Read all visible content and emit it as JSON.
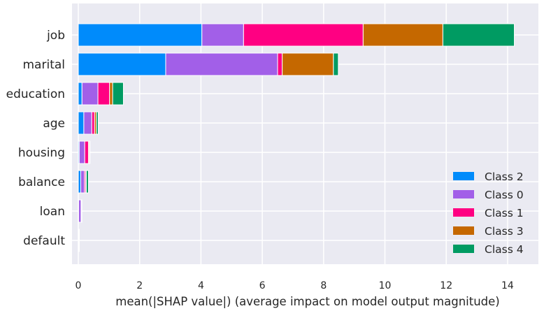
{
  "chart_data": {
    "type": "bar",
    "orientation": "horizontal",
    "stacked": true,
    "categories": [
      "job",
      "marital",
      "education",
      "age",
      "housing",
      "balance",
      "loan",
      "default"
    ],
    "series": [
      {
        "name": "Class 2",
        "color": "#008bfb",
        "values": [
          4.03,
          2.85,
          0.12,
          0.18,
          0.03,
          0.08,
          0.01,
          0.005
        ]
      },
      {
        "name": "Class 0",
        "color": "#a25fe8",
        "values": [
          1.36,
          3.65,
          0.52,
          0.26,
          0.18,
          0.12,
          0.08,
          0.005
        ]
      },
      {
        "name": "Class 1",
        "color": "#ff0082",
        "values": [
          3.9,
          0.15,
          0.38,
          0.09,
          0.12,
          0.04,
          0.01,
          0.005
        ]
      },
      {
        "name": "Class 3",
        "color": "#c56800",
        "values": [
          2.6,
          1.67,
          0.1,
          0.06,
          0.03,
          0.02,
          0.005,
          0.005
        ]
      },
      {
        "name": "Class 4",
        "color": "#009b62",
        "values": [
          2.33,
          0.16,
          0.35,
          0.06,
          0.02,
          0.07,
          0.005,
          0.005
        ]
      }
    ],
    "xlabel": "mean(|SHAP value|) (average impact on model output magnitude)",
    "ylabel": "",
    "xlim": [
      0,
      15
    ],
    "xticks": [
      0,
      2,
      4,
      6,
      8,
      10,
      12,
      14
    ],
    "grid": true,
    "legend_position": "bottom-right",
    "background": "#eaeaf2"
  }
}
